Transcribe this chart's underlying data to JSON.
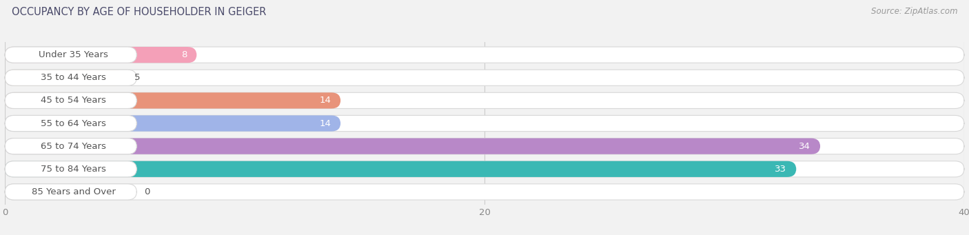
{
  "title": "OCCUPANCY BY AGE OF HOUSEHOLDER IN GEIGER",
  "source": "Source: ZipAtlas.com",
  "categories": [
    "Under 35 Years",
    "35 to 44 Years",
    "45 to 54 Years",
    "55 to 64 Years",
    "65 to 74 Years",
    "75 to 84 Years",
    "85 Years and Over"
  ],
  "values": [
    8,
    5,
    14,
    14,
    34,
    33,
    0
  ],
  "bar_colors": [
    "#f4a0b8",
    "#f9c98a",
    "#e8937a",
    "#a0b4e8",
    "#b888c8",
    "#3ab8b4",
    "#c8c0e8"
  ],
  "xlim_max": 40,
  "xticks": [
    0,
    20,
    40
  ],
  "bar_height": 0.7,
  "background_color": "#f2f2f2",
  "label_fontsize": 9.5,
  "value_fontsize": 9.5,
  "title_fontsize": 10.5,
  "label_color": "#555555",
  "title_color": "#4a4a6a"
}
